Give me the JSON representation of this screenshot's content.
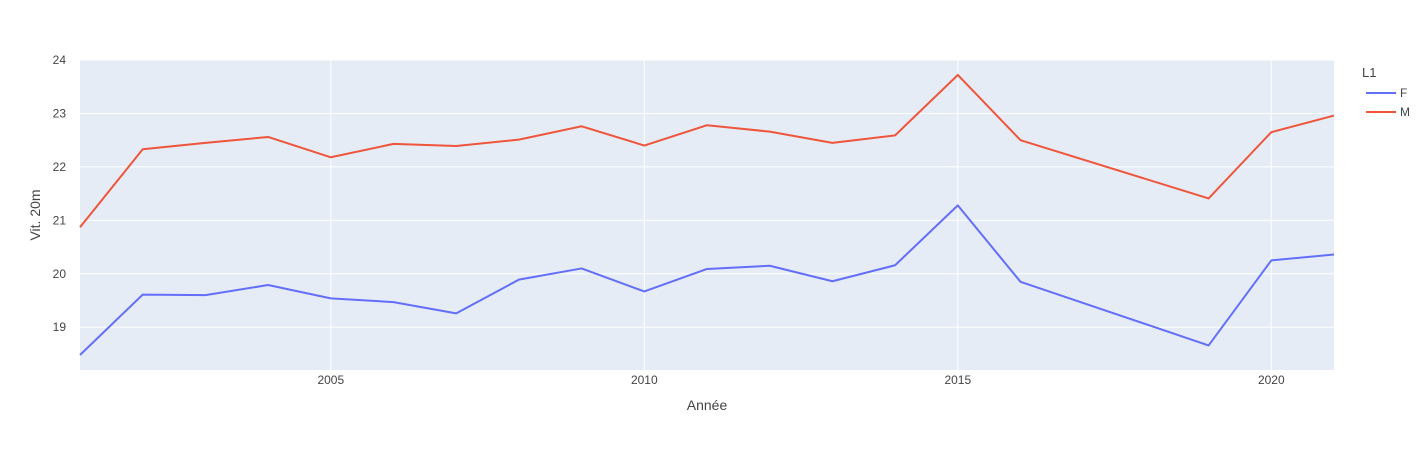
{
  "chart_data": {
    "type": "line",
    "xlabel": "Année",
    "ylabel": "Vit. 20m",
    "xlim": [
      2001,
      2021
    ],
    "ylim": [
      18.2,
      24
    ],
    "x_ticks": [
      2005,
      2010,
      2015,
      2020
    ],
    "y_ticks": [
      19,
      20,
      21,
      22,
      23,
      24
    ],
    "grid": true,
    "legend": {
      "title": "L1",
      "placement": "top-right"
    },
    "series": [
      {
        "name": "F",
        "color": "#636efa",
        "x": [
          2001,
          2002,
          2003,
          2004,
          2005,
          2006,
          2007,
          2008,
          2009,
          2010,
          2011,
          2012,
          2013,
          2014,
          2015,
          2016,
          2019,
          2020,
          2021
        ],
        "values": [
          18.48,
          19.61,
          19.6,
          19.79,
          19.54,
          19.47,
          19.26,
          19.89,
          20.1,
          19.67,
          20.09,
          20.15,
          19.86,
          20.16,
          21.28,
          19.85,
          18.66,
          20.25,
          20.36
        ]
      },
      {
        "name": "M",
        "color": "#ef553b",
        "x": [
          2001,
          2002,
          2003,
          2004,
          2005,
          2006,
          2007,
          2008,
          2009,
          2010,
          2011,
          2012,
          2013,
          2014,
          2015,
          2016,
          2019,
          2020,
          2021
        ],
        "values": [
          20.87,
          22.33,
          22.45,
          22.56,
          22.18,
          22.43,
          22.39,
          22.51,
          22.76,
          22.4,
          22.78,
          22.66,
          22.45,
          22.59,
          23.72,
          22.5,
          21.41,
          22.65,
          22.96
        ]
      }
    ]
  }
}
